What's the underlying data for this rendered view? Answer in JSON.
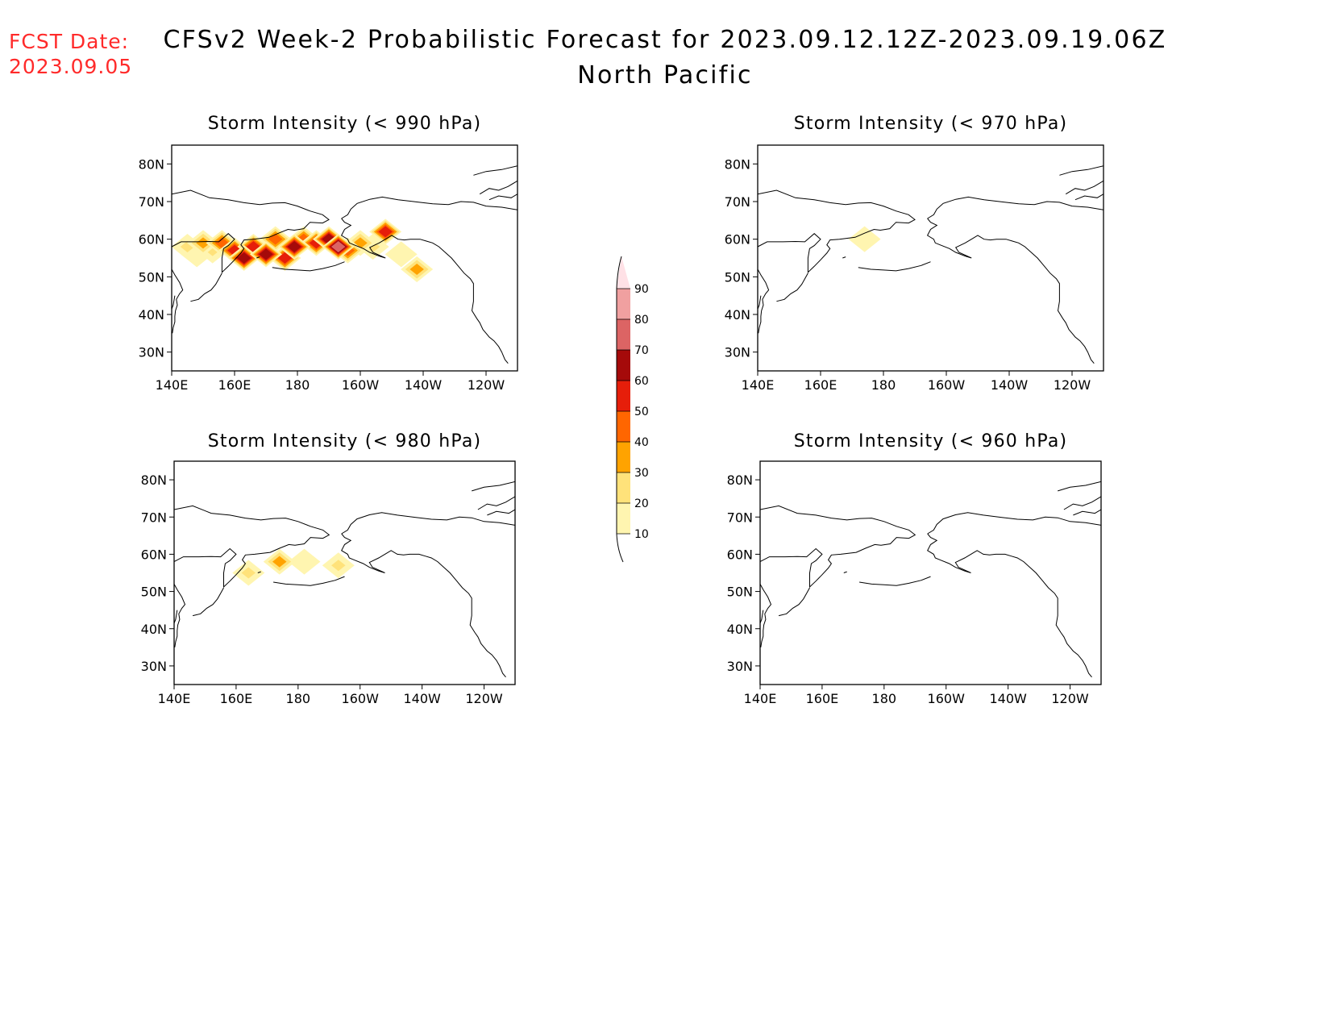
{
  "header": {
    "fcst_label_line1": "FCST Date:",
    "fcst_label_line2": "2023.09.05",
    "title": "CFSv2 Week-2 Probabilistic Forecast for 2023.09.12.12Z-2023.09.19.06Z",
    "subtitle": "North Pacific",
    "fcst_color": "#ff2a2a"
  },
  "axes": {
    "lat_labels": [
      "80N",
      "70N",
      "60N",
      "50N",
      "40N",
      "30N"
    ],
    "lat_values": [
      80,
      70,
      60,
      50,
      40,
      30
    ],
    "lon_labels": [
      "140E",
      "160E",
      "180",
      "160W",
      "140W",
      "120W"
    ],
    "lon_values": [
      140,
      160,
      180,
      200,
      220,
      240
    ],
    "lon_range": [
      140,
      250
    ],
    "lat_range": [
      25,
      85
    ]
  },
  "panels": [
    {
      "id": "p990",
      "title": "Storm Intensity (< 990 hPa)",
      "blobs": [
        {
          "lon": 145,
          "lat": 58,
          "level": 20
        },
        {
          "lon": 148,
          "lat": 56,
          "level": 10
        },
        {
          "lon": 150,
          "lat": 59,
          "level": 30
        },
        {
          "lon": 153,
          "lat": 57,
          "level": 20
        },
        {
          "lon": 156,
          "lat": 59,
          "level": 40
        },
        {
          "lon": 160,
          "lat": 57,
          "level": 50
        },
        {
          "lon": 163,
          "lat": 55,
          "level": 60
        },
        {
          "lon": 166,
          "lat": 58,
          "level": 50
        },
        {
          "lon": 170,
          "lat": 56,
          "level": 60
        },
        {
          "lon": 173,
          "lat": 60,
          "level": 40
        },
        {
          "lon": 176,
          "lat": 55,
          "level": 50
        },
        {
          "lon": 179,
          "lat": 58,
          "level": 60
        },
        {
          "lon": 182,
          "lat": 60,
          "level": 40
        },
        {
          "lon": 186,
          "lat": 59,
          "level": 50
        },
        {
          "lon": 190,
          "lat": 60,
          "level": 60
        },
        {
          "lon": 193,
          "lat": 58,
          "level": 70
        },
        {
          "lon": 196,
          "lat": 57,
          "level": 40
        },
        {
          "lon": 200,
          "lat": 59,
          "level": 30
        },
        {
          "lon": 204,
          "lat": 58,
          "level": 20
        },
        {
          "lon": 208,
          "lat": 62,
          "level": 50
        },
        {
          "lon": 213,
          "lat": 56,
          "level": 10
        },
        {
          "lon": 218,
          "lat": 52,
          "level": 30
        }
      ]
    },
    {
      "id": "p970",
      "title": "Storm Intensity (< 970 hPa)",
      "blobs": [
        {
          "lon": 174,
          "lat": 60,
          "level": 10
        }
      ]
    },
    {
      "id": "p980",
      "title": "Storm Intensity (< 980 hPa)",
      "blobs": [
        {
          "lon": 164,
          "lat": 55,
          "level": 20
        },
        {
          "lon": 174,
          "lat": 58,
          "level": 30
        },
        {
          "lon": 182,
          "lat": 58,
          "level": 10
        },
        {
          "lon": 193,
          "lat": 57,
          "level": 20
        }
      ]
    },
    {
      "id": "p960",
      "title": "Storm Intensity (< 960 hPa)",
      "blobs": []
    }
  ],
  "colorbar": {
    "labels": [
      "10",
      "20",
      "30",
      "40",
      "50",
      "60",
      "70",
      "80",
      "90"
    ],
    "levels": [
      10,
      20,
      30,
      40,
      50,
      60,
      70,
      80,
      90
    ],
    "colors": [
      "#fff5b0",
      "#ffe27a",
      "#ffa300",
      "#ff6600",
      "#e61e0a",
      "#a50a0a",
      "#dc6464",
      "#f0a0a0",
      "#ffe1e6"
    ]
  }
}
